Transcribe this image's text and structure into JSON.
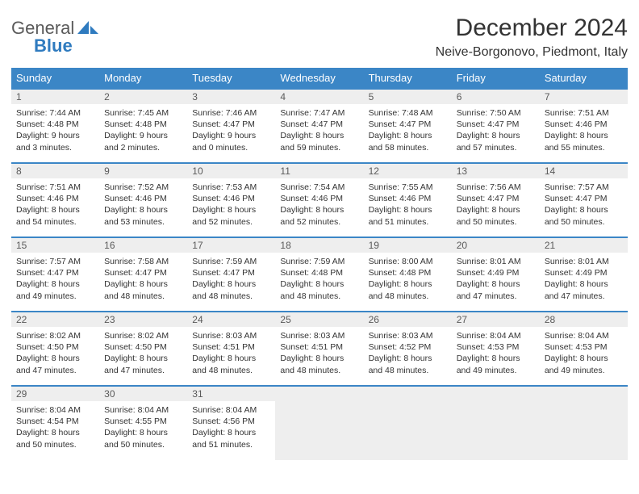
{
  "logo": {
    "text1": "General",
    "text2": "Blue"
  },
  "title": "December 2024",
  "subtitle": "Neive-Borgonovo, Piedmont, Italy",
  "columns": [
    "Sunday",
    "Monday",
    "Tuesday",
    "Wednesday",
    "Thursday",
    "Friday",
    "Saturday"
  ],
  "colors": {
    "header_bg": "#3b86c6",
    "header_text": "#ffffff",
    "daynum_bg": "#eeeeee",
    "border": "#3b86c6",
    "logo_gray": "#5a5a5a",
    "logo_blue": "#2f7bbf"
  },
  "days": [
    {
      "n": "1",
      "sunrise": "7:44 AM",
      "sunset": "4:48 PM",
      "daylight": "9 hours and 3 minutes."
    },
    {
      "n": "2",
      "sunrise": "7:45 AM",
      "sunset": "4:48 PM",
      "daylight": "9 hours and 2 minutes."
    },
    {
      "n": "3",
      "sunrise": "7:46 AM",
      "sunset": "4:47 PM",
      "daylight": "9 hours and 0 minutes."
    },
    {
      "n": "4",
      "sunrise": "7:47 AM",
      "sunset": "4:47 PM",
      "daylight": "8 hours and 59 minutes."
    },
    {
      "n": "5",
      "sunrise": "7:48 AM",
      "sunset": "4:47 PM",
      "daylight": "8 hours and 58 minutes."
    },
    {
      "n": "6",
      "sunrise": "7:50 AM",
      "sunset": "4:47 PM",
      "daylight": "8 hours and 57 minutes."
    },
    {
      "n": "7",
      "sunrise": "7:51 AM",
      "sunset": "4:46 PM",
      "daylight": "8 hours and 55 minutes."
    },
    {
      "n": "8",
      "sunrise": "7:51 AM",
      "sunset": "4:46 PM",
      "daylight": "8 hours and 54 minutes."
    },
    {
      "n": "9",
      "sunrise": "7:52 AM",
      "sunset": "4:46 PM",
      "daylight": "8 hours and 53 minutes."
    },
    {
      "n": "10",
      "sunrise": "7:53 AM",
      "sunset": "4:46 PM",
      "daylight": "8 hours and 52 minutes."
    },
    {
      "n": "11",
      "sunrise": "7:54 AM",
      "sunset": "4:46 PM",
      "daylight": "8 hours and 52 minutes."
    },
    {
      "n": "12",
      "sunrise": "7:55 AM",
      "sunset": "4:46 PM",
      "daylight": "8 hours and 51 minutes."
    },
    {
      "n": "13",
      "sunrise": "7:56 AM",
      "sunset": "4:47 PM",
      "daylight": "8 hours and 50 minutes."
    },
    {
      "n": "14",
      "sunrise": "7:57 AM",
      "sunset": "4:47 PM",
      "daylight": "8 hours and 50 minutes."
    },
    {
      "n": "15",
      "sunrise": "7:57 AM",
      "sunset": "4:47 PM",
      "daylight": "8 hours and 49 minutes."
    },
    {
      "n": "16",
      "sunrise": "7:58 AM",
      "sunset": "4:47 PM",
      "daylight": "8 hours and 48 minutes."
    },
    {
      "n": "17",
      "sunrise": "7:59 AM",
      "sunset": "4:47 PM",
      "daylight": "8 hours and 48 minutes."
    },
    {
      "n": "18",
      "sunrise": "7:59 AM",
      "sunset": "4:48 PM",
      "daylight": "8 hours and 48 minutes."
    },
    {
      "n": "19",
      "sunrise": "8:00 AM",
      "sunset": "4:48 PM",
      "daylight": "8 hours and 48 minutes."
    },
    {
      "n": "20",
      "sunrise": "8:01 AM",
      "sunset": "4:49 PM",
      "daylight": "8 hours and 47 minutes."
    },
    {
      "n": "21",
      "sunrise": "8:01 AM",
      "sunset": "4:49 PM",
      "daylight": "8 hours and 47 minutes."
    },
    {
      "n": "22",
      "sunrise": "8:02 AM",
      "sunset": "4:50 PM",
      "daylight": "8 hours and 47 minutes."
    },
    {
      "n": "23",
      "sunrise": "8:02 AM",
      "sunset": "4:50 PM",
      "daylight": "8 hours and 47 minutes."
    },
    {
      "n": "24",
      "sunrise": "8:03 AM",
      "sunset": "4:51 PM",
      "daylight": "8 hours and 48 minutes."
    },
    {
      "n": "25",
      "sunrise": "8:03 AM",
      "sunset": "4:51 PM",
      "daylight": "8 hours and 48 minutes."
    },
    {
      "n": "26",
      "sunrise": "8:03 AM",
      "sunset": "4:52 PM",
      "daylight": "8 hours and 48 minutes."
    },
    {
      "n": "27",
      "sunrise": "8:04 AM",
      "sunset": "4:53 PM",
      "daylight": "8 hours and 49 minutes."
    },
    {
      "n": "28",
      "sunrise": "8:04 AM",
      "sunset": "4:53 PM",
      "daylight": "8 hours and 49 minutes."
    },
    {
      "n": "29",
      "sunrise": "8:04 AM",
      "sunset": "4:54 PM",
      "daylight": "8 hours and 50 minutes."
    },
    {
      "n": "30",
      "sunrise": "8:04 AM",
      "sunset": "4:55 PM",
      "daylight": "8 hours and 50 minutes."
    },
    {
      "n": "31",
      "sunrise": "8:04 AM",
      "sunset": "4:56 PM",
      "daylight": "8 hours and 51 minutes."
    }
  ],
  "labels": {
    "sunrise": "Sunrise:",
    "sunset": "Sunset:",
    "daylight": "Daylight:"
  }
}
